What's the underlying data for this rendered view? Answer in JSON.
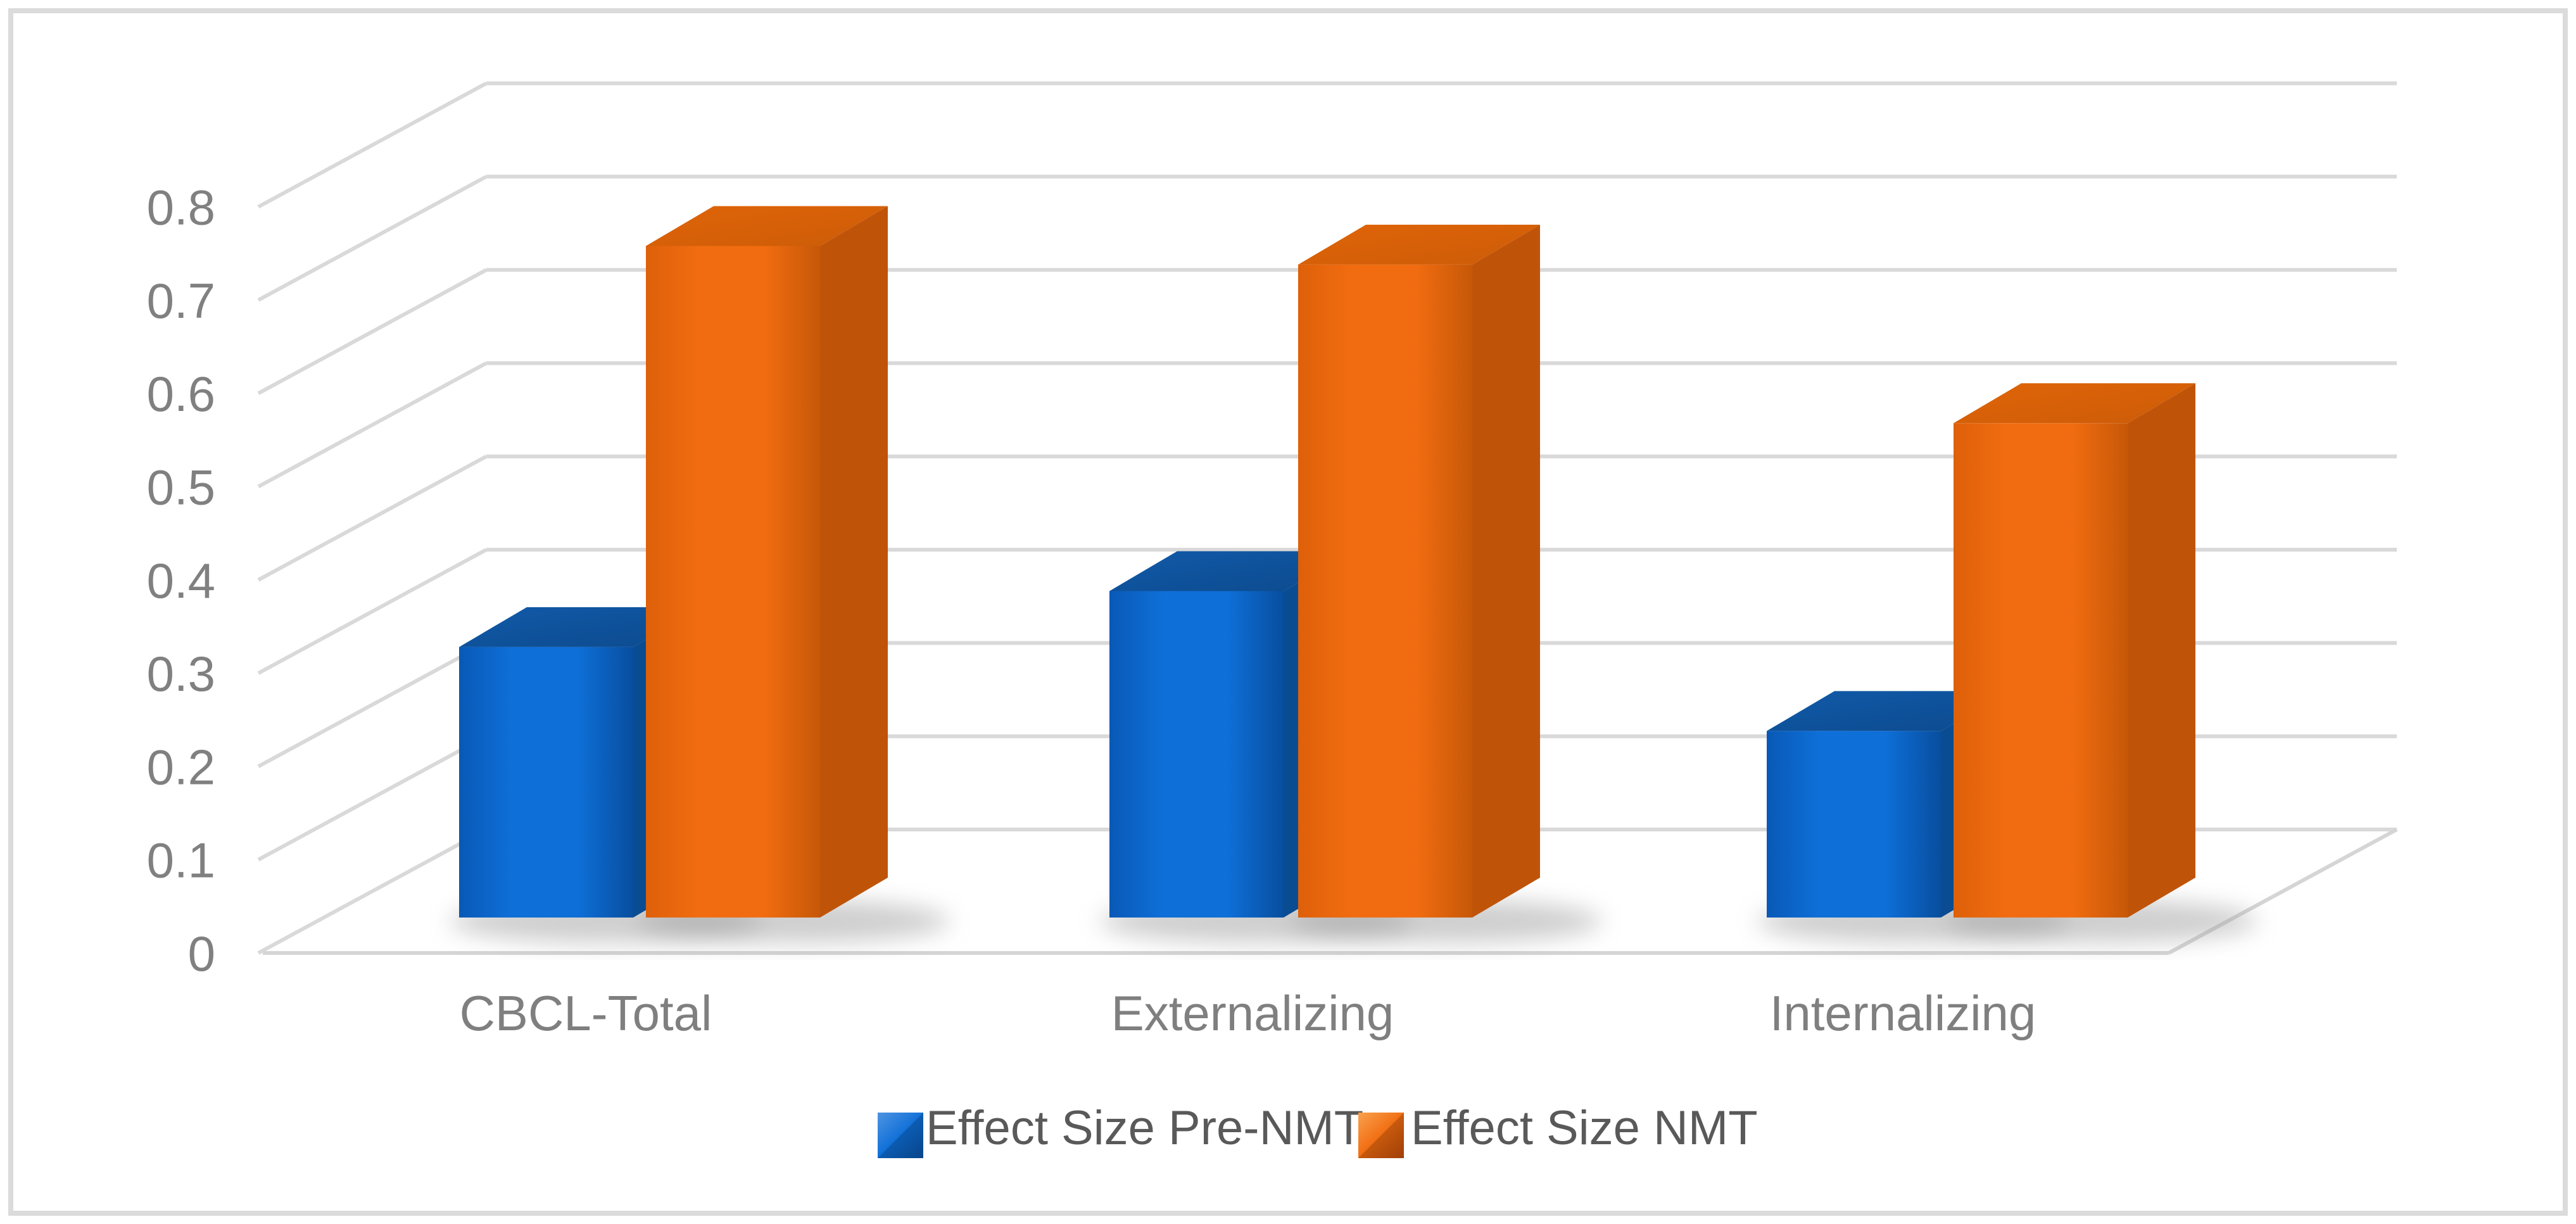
{
  "figure": {
    "background": "#ffffff",
    "border_color": "#dbdbdb"
  },
  "chart_data": {
    "type": "bar",
    "style": "3d-clustered-column",
    "title": "",
    "xlabel": "",
    "ylabel": "",
    "categories": [
      "CBCL-Total",
      "Externalizing",
      "Internalizing"
    ],
    "series": [
      {
        "name": "Effect Size Pre-NMT",
        "color": "#0d6cd6",
        "values": [
          0.29,
          0.35,
          0.2
        ]
      },
      {
        "name": "Effect Size NMT",
        "color": "#f16c10",
        "values": [
          0.72,
          0.7,
          0.53
        ]
      }
    ],
    "ylim": [
      0,
      0.8
    ],
    "ytick_step": 0.1,
    "ytick_labels": [
      "0",
      "0.1",
      "0.2",
      "0.3",
      "0.4",
      "0.5",
      "0.6",
      "0.7",
      "0.8"
    ],
    "grid": true,
    "legend_position": "bottom"
  },
  "legend": {
    "items": [
      {
        "label": "Effect Size Pre-NMT",
        "color": "#0d6cd6"
      },
      {
        "label": "Effect Size NMT",
        "color": "#f16c10"
      }
    ]
  },
  "colors": {
    "grid": "#d9d9d9",
    "floor_line": "#d5d5d5",
    "tick_text": "#808080",
    "category_text": "#7f7f7f",
    "legend_text": "#595959",
    "shadow": "#9e9e9e",
    "blue_front_edge": "#0959b6",
    "blue_front_mid": "#0e6fd8",
    "blue_front_right": "#084e9e",
    "blue_top_light": "#115aa8",
    "blue_top_dark": "#0c4a8e",
    "blue_side": "#0a4c92",
    "orange_front_edge": "#de600a",
    "orange_front_mid": "#f16c10",
    "orange_front_right": "#c65808",
    "orange_top_light": "#e06408",
    "orange_top_dark": "#cc5c08",
    "orange_side": "#bf5409",
    "legend_marker_blue_light": "#4f94e2",
    "legend_marker_blue_dark": "#0b57ad",
    "legend_marker_orange_light": "#f9a14f",
    "legend_marker_orange_dark": "#c8500a"
  }
}
